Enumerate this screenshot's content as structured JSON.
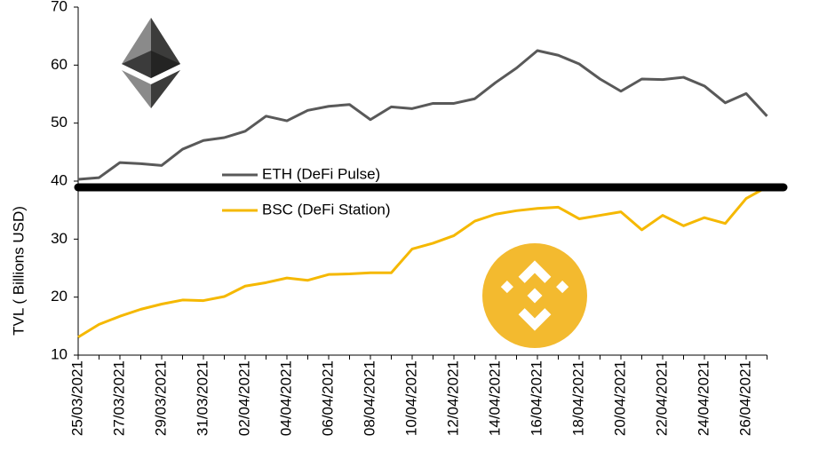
{
  "chart_data": {
    "type": "line",
    "y_label": "TVL ( Billions USD)",
    "categories": [
      "25/03/2021",
      null,
      "27/03/2021",
      null,
      "29/03/2021",
      null,
      "31/03/2021",
      null,
      "02/04/2021",
      null,
      "04/04/2021",
      null,
      "06/04/2021",
      null,
      "08/04/2021",
      null,
      "10/04/2021",
      null,
      "12/04/2021",
      null,
      "14/04/2021",
      null,
      "16/04/2021",
      null,
      "18/04/2021",
      null,
      "20/04/2021",
      null,
      "22/04/2021",
      null,
      "24/04/2021",
      null,
      "26/04/2021",
      null
    ],
    "series": [
      {
        "name": "ETH (DeFi  Pulse)",
        "color": "#595959",
        "values": [
          40.3,
          40.6,
          43.2,
          43.0,
          42.7,
          45.5,
          47.0,
          47.5,
          48.6,
          51.2,
          50.4,
          52.2,
          52.9,
          53.2,
          50.6,
          52.8,
          52.5,
          53.4,
          53.4,
          54.2,
          57.0,
          59.5,
          62.5,
          61.7,
          60.2,
          57.6,
          55.5,
          57.6,
          57.5,
          57.9,
          56.4,
          53.5,
          55.1,
          51.2
        ]
      },
      {
        "name": "BSC (DeFi Station)",
        "color": "#f5b800",
        "values": [
          13.1,
          15.3,
          16.7,
          17.9,
          18.8,
          19.5,
          19.4,
          20.1,
          21.9,
          22.5,
          23.3,
          22.9,
          23.9,
          24.0,
          24.2,
          24.2,
          28.3,
          29.3,
          30.6,
          33.1,
          34.3,
          34.9,
          35.3,
          35.5,
          33.5,
          34.1,
          34.7,
          31.6,
          34.1,
          32.3,
          33.7,
          32.7,
          37.0,
          39.0
        ]
      }
    ],
    "ylim": [
      10,
      70
    ],
    "yticks": [
      10,
      20,
      30,
      40,
      50,
      60,
      70
    ],
    "grid": false
  }
}
